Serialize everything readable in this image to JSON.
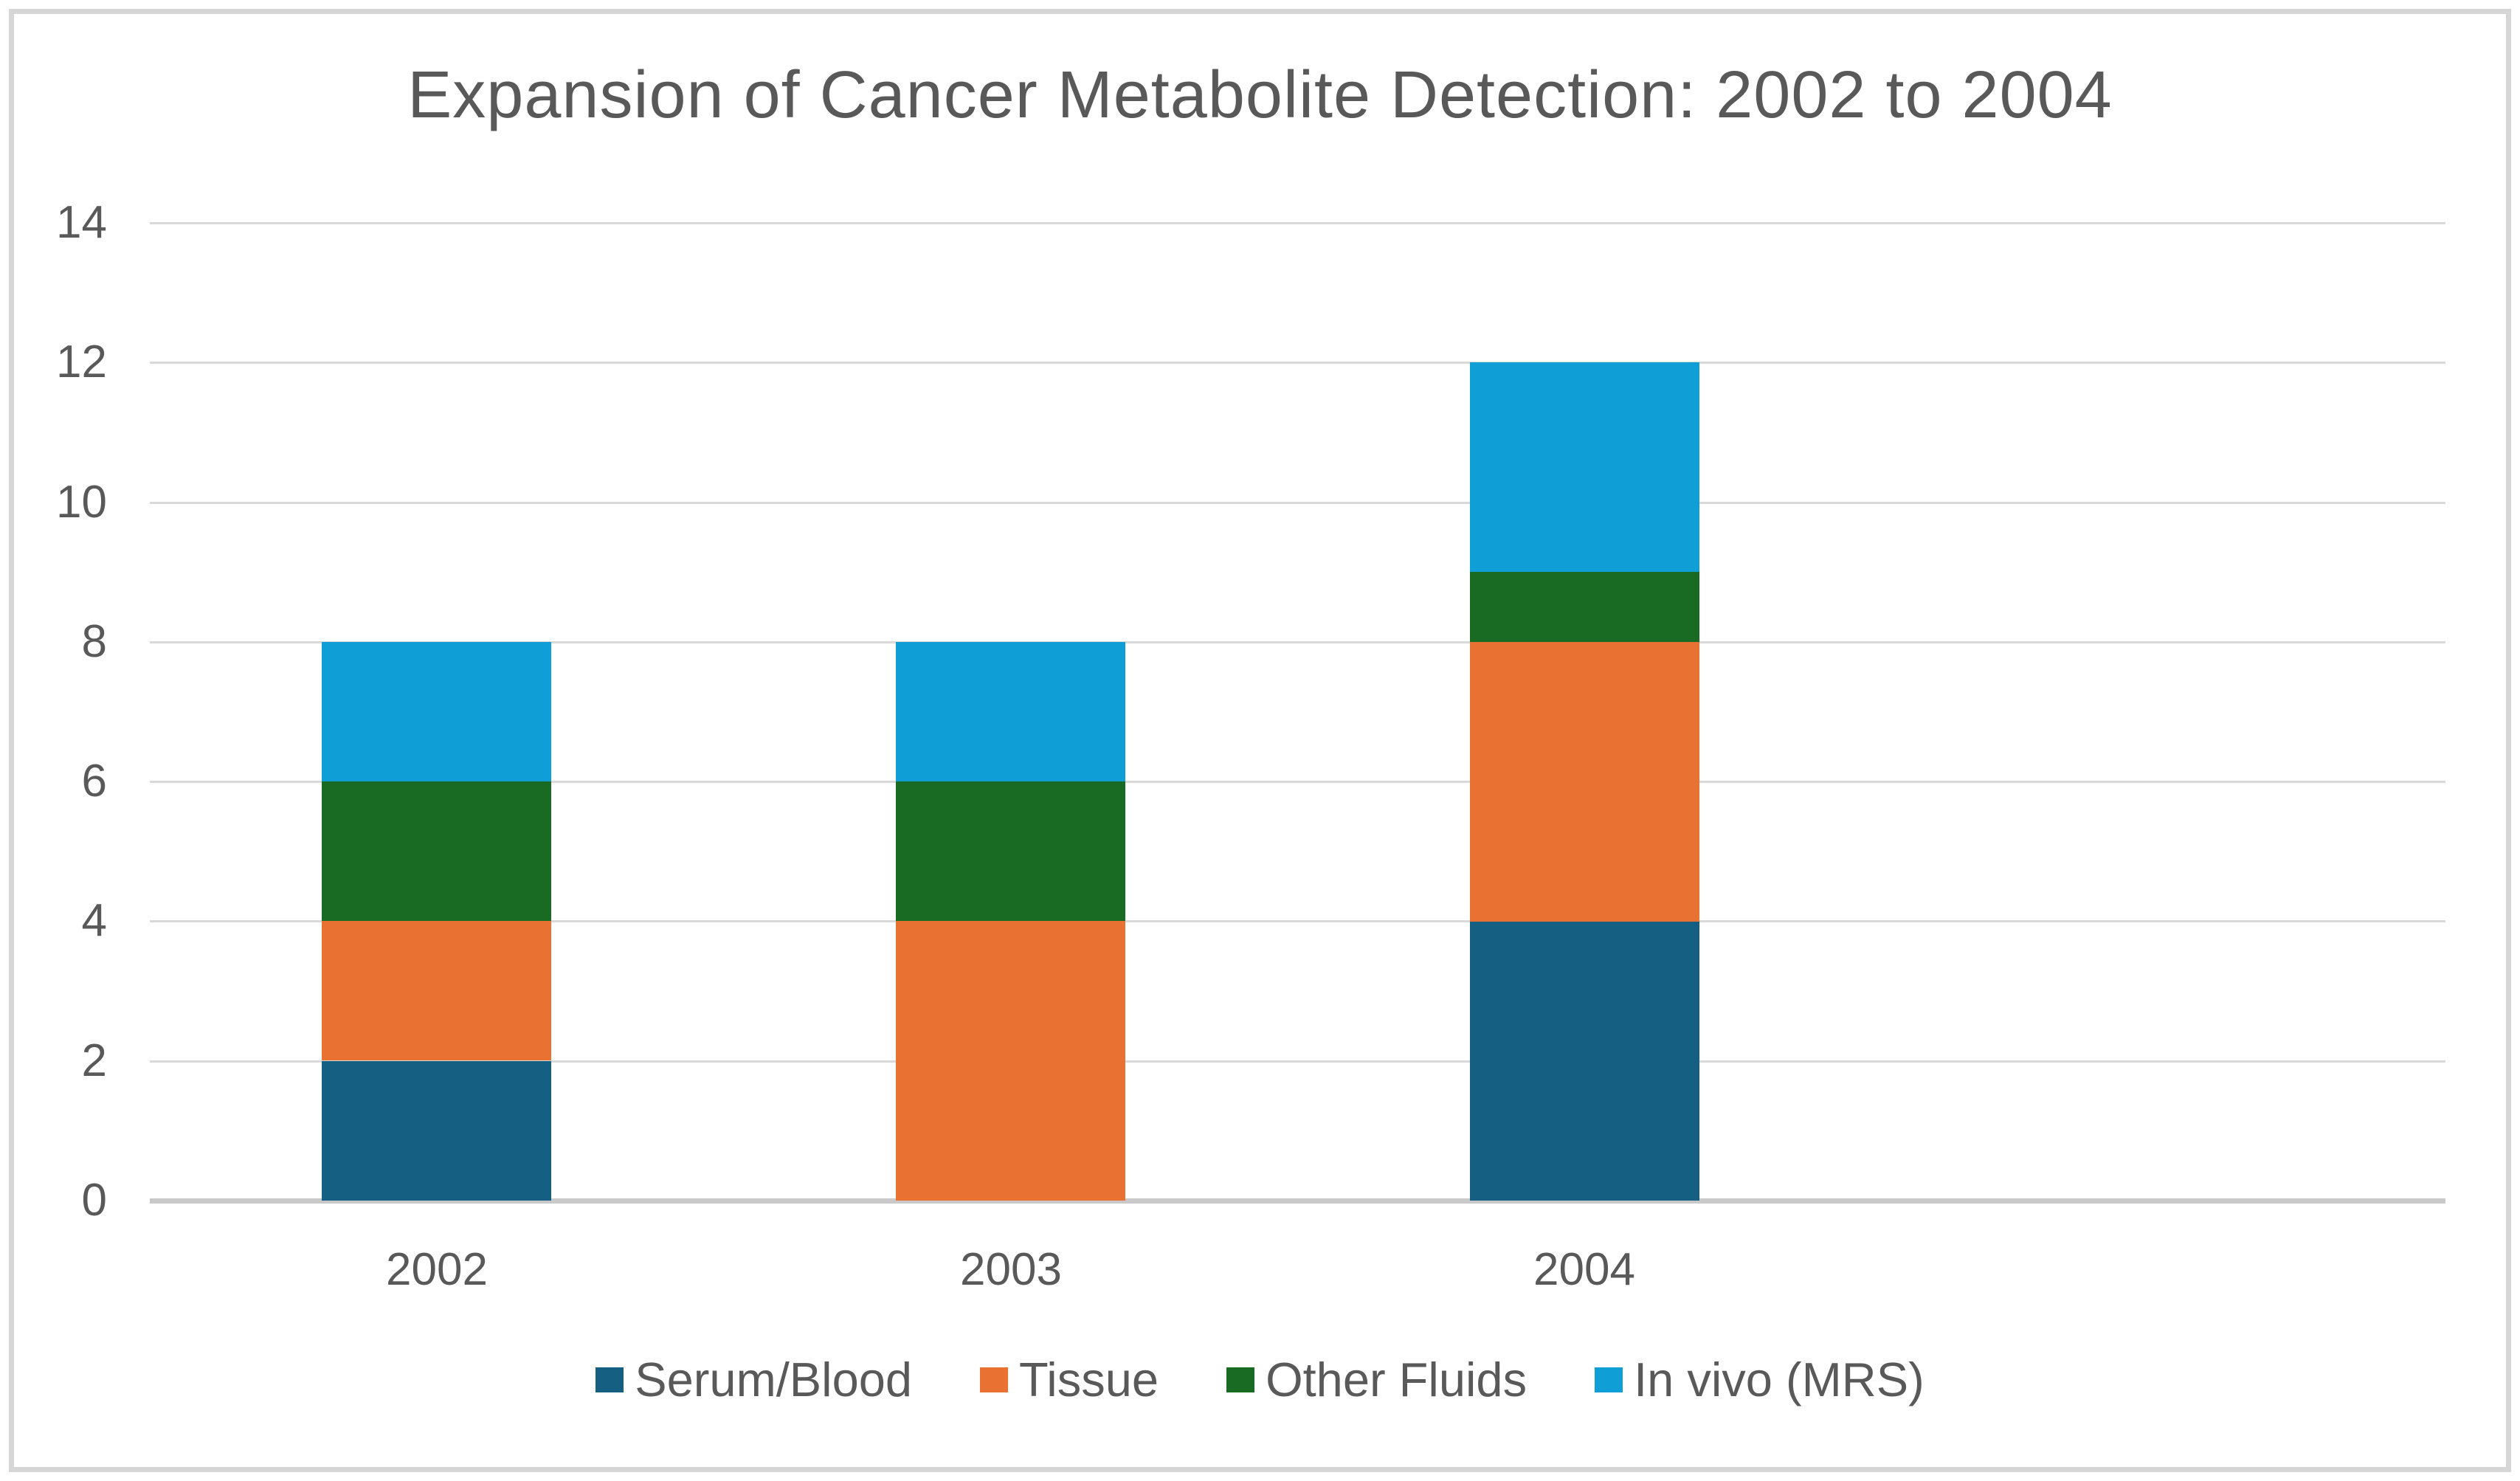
{
  "chart_data": {
    "type": "bar",
    "stacked": true,
    "title": "Expansion of Cancer Metabolite Detection: 2002 to 2004",
    "categories": [
      "2002",
      "2003",
      "2004"
    ],
    "series": [
      {
        "name": "Serum/Blood",
        "color": "#156082",
        "values": [
          2,
          0,
          4
        ]
      },
      {
        "name": "Tissue",
        "color": "#E97132",
        "values": [
          2,
          4,
          4
        ]
      },
      {
        "name": "Other Fluids",
        "color": "#196B24",
        "values": [
          2,
          2,
          1
        ]
      },
      {
        "name": "In vivo (MRS)",
        "color": "#0F9ED5",
        "values": [
          2,
          2,
          3
        ]
      }
    ],
    "xlabel": "",
    "ylabel": "",
    "ylim": [
      0,
      14
    ],
    "ytick_step": 2,
    "yticks": [
      0,
      2,
      4,
      6,
      8,
      10,
      12,
      14
    ],
    "grid": "horizontal",
    "legend_position": "bottom",
    "category_slots": 4,
    "gap_width_percent": 150
  },
  "colors": {
    "text": "#595959",
    "gridline": "#D9D9D9",
    "axis_line": "#C9C9C9",
    "frame_border": "#D6D6D6",
    "background": "#FFFFFF"
  }
}
